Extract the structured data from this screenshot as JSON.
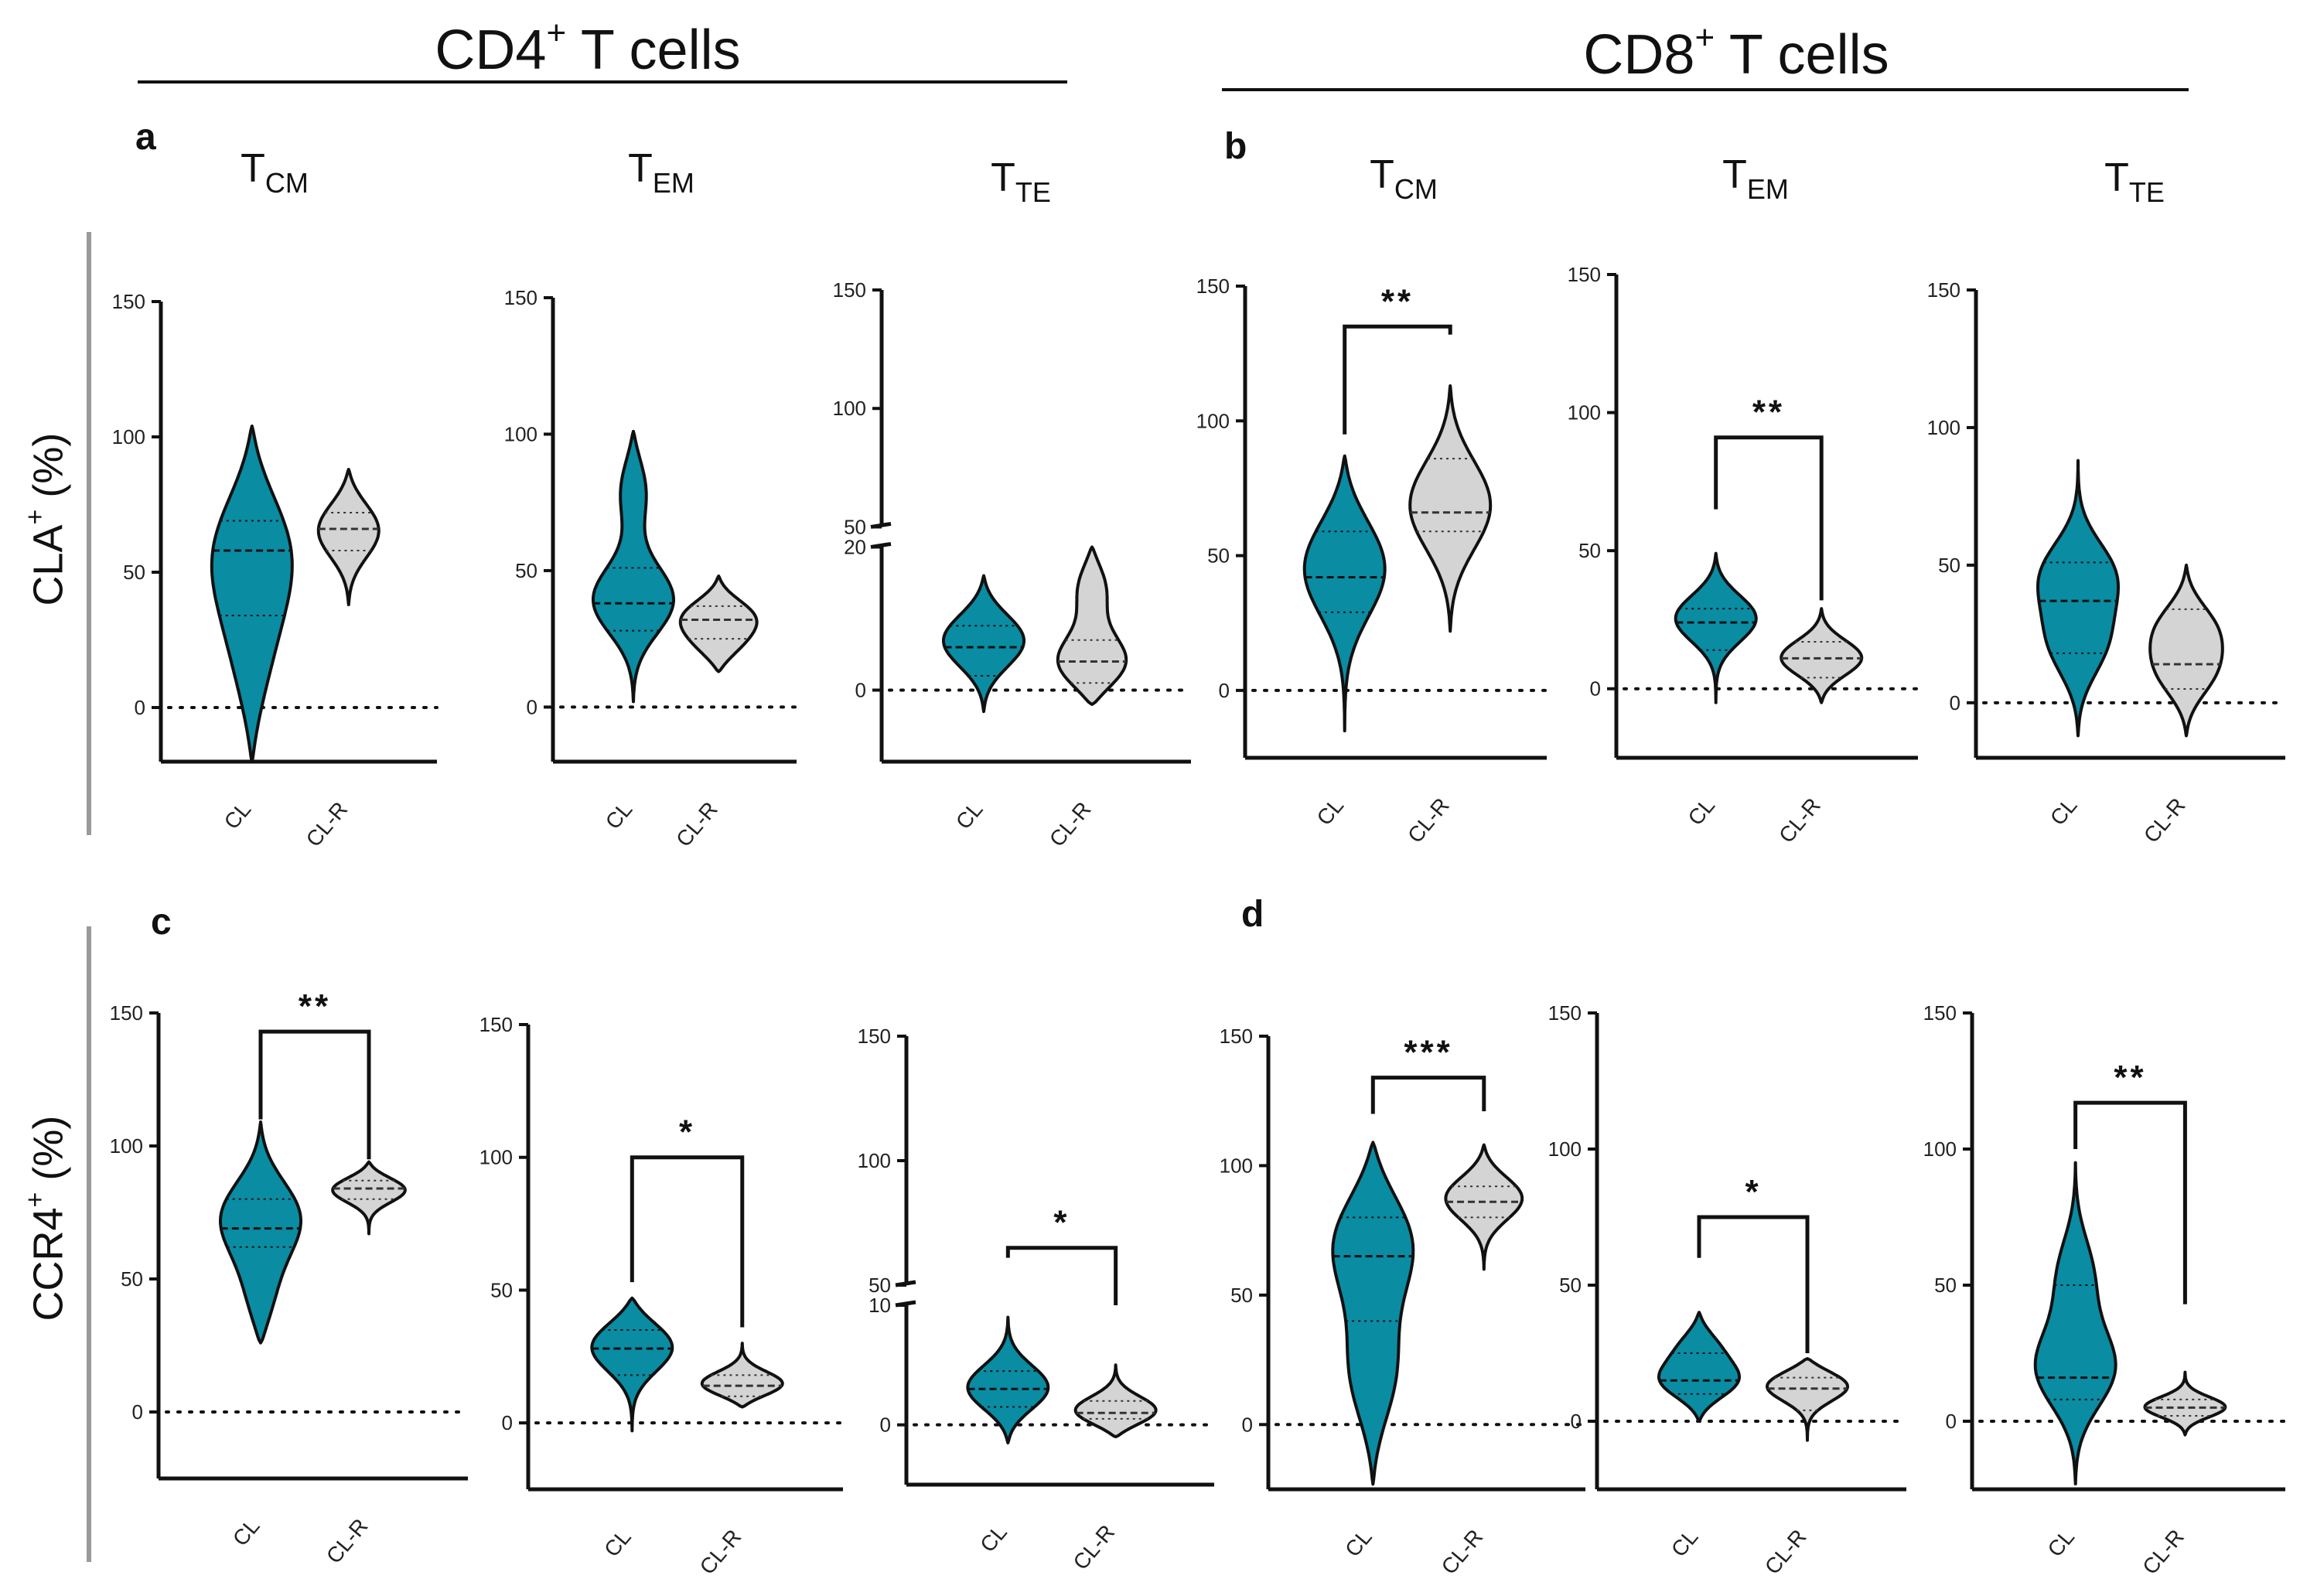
{
  "headers": {
    "cd4": {
      "main": "CD4",
      "sup": "+",
      "rest": " T cells"
    },
    "cd8": {
      "main": "CD8",
      "sup": "+",
      "rest": " T cells"
    }
  },
  "panel_labels": {
    "a": "a",
    "b": "b",
    "c": "c",
    "d": "d"
  },
  "row_labels": {
    "cla": {
      "main": "CLA",
      "sup": "+",
      "rest": " (%)"
    },
    "ccr4": {
      "main": "CCR4",
      "sup": "+",
      "rest": " (%)"
    }
  },
  "colors": {
    "cl": "#0a8ca3",
    "clr": "#d4d4d4",
    "axis": "#111111"
  },
  "chart_data": [
    {
      "id": "a1",
      "type": "violin",
      "panel": "a",
      "row": "CLA",
      "subset": "T",
      "subset_sub": "CM",
      "categories": [
        "CL",
        "CL-R"
      ],
      "ylim": [
        -20,
        150
      ],
      "yticks": [
        0,
        50,
        100,
        150
      ],
      "ytick_labels": [
        "0",
        "50",
        "100",
        "150"
      ],
      "series": [
        {
          "name": "CL",
          "min": -20,
          "max": 104,
          "q1": 34,
          "median": 58,
          "q3": 69,
          "modes": [
            [
              60,
              1.0
            ],
            [
              15,
              0.42
            ]
          ],
          "spread": 24
        },
        {
          "name": "CL-R",
          "min": 38,
          "max": 88,
          "q1": 58,
          "median": 66,
          "q3": 72,
          "modes": [
            [
              66,
              0.75
            ]
          ],
          "spread": 11
        }
      ],
      "significance": null
    },
    {
      "id": "a2",
      "type": "violin",
      "panel": "a",
      "row": "CLA",
      "subset": "T",
      "subset_sub": "EM",
      "categories": [
        "CL",
        "CL-R"
      ],
      "ylim": [
        -20,
        150
      ],
      "yticks": [
        0,
        50,
        100,
        150
      ],
      "ytick_labels": [
        "0",
        "50",
        "100",
        "150"
      ],
      "series": [
        {
          "name": "CL",
          "min": 2,
          "max": 101,
          "q1": 28,
          "median": 38,
          "q3": 51,
          "modes": [
            [
              38,
              1.0
            ],
            [
              82,
              0.4
            ]
          ],
          "spread": 13
        },
        {
          "name": "CL-R",
          "min": 13,
          "max": 48,
          "q1": 25,
          "median": 32,
          "q3": 37,
          "modes": [
            [
              34,
              0.95
            ],
            [
              22,
              0.6
            ]
          ],
          "spread": 7
        }
      ],
      "significance": null
    },
    {
      "id": "a3",
      "type": "violin",
      "panel": "a",
      "row": "CLA",
      "subset": "T",
      "subset_sub": "TE",
      "categories": [
        "CL",
        "CL-R"
      ],
      "ylim": [
        -10,
        150
      ],
      "broken": {
        "low_max": 20,
        "high_min": 50,
        "break_frac": 0.455
      },
      "yticks": [
        0,
        20,
        50,
        100,
        150
      ],
      "ytick_labels": [
        "0",
        "20",
        "50",
        "100",
        "150"
      ],
      "series": [
        {
          "name": "CL",
          "min": -3,
          "max": 16,
          "q1": 2,
          "median": 6,
          "q3": 9,
          "modes": [
            [
              7,
              1.0
            ]
          ],
          "spread": 4
        },
        {
          "name": "CL-R",
          "min": -2,
          "max": 20,
          "q1": 1,
          "median": 4,
          "q3": 7,
          "modes": [
            [
              3,
              0.85
            ],
            [
              15,
              0.35
            ]
          ],
          "spread": 4
        }
      ],
      "significance": null
    },
    {
      "id": "b1",
      "type": "violin",
      "panel": "b",
      "row": "CLA",
      "subset": "T",
      "subset_sub": "CM",
      "categories": [
        "CL",
        "CL-R"
      ],
      "ylim": [
        -25,
        150
      ],
      "yticks": [
        0,
        50,
        100,
        150
      ],
      "ytick_labels": [
        "0",
        "50",
        "100",
        "150"
      ],
      "series": [
        {
          "name": "CL",
          "min": -15,
          "max": 87,
          "q1": 29,
          "median": 42,
          "q3": 59,
          "modes": [
            [
              47,
              1.0
            ]
          ],
          "spread": 19
        },
        {
          "name": "CL-R",
          "min": 22,
          "max": 113,
          "q1": 59,
          "median": 66,
          "q3": 86,
          "modes": [
            [
              69,
              1.0
            ]
          ],
          "spread": 18
        }
      ],
      "significance": {
        "label": "**",
        "y": 135,
        "drop_left": 95,
        "drop_right": 132
      }
    },
    {
      "id": "b2",
      "type": "violin",
      "panel": "b",
      "row": "CLA",
      "subset": "T",
      "subset_sub": "EM",
      "categories": [
        "CL",
        "CL-R"
      ],
      "ylim": [
        -25,
        150
      ],
      "yticks": [
        0,
        50,
        100,
        150
      ],
      "ytick_labels": [
        "0",
        "50",
        "100",
        "150"
      ],
      "series": [
        {
          "name": "CL",
          "min": -5,
          "max": 49,
          "q1": 14,
          "median": 24,
          "q3": 29,
          "modes": [
            [
              26,
              1.0
            ]
          ],
          "spread": 9
        },
        {
          "name": "CL-R",
          "min": -5,
          "max": 29,
          "q1": 4,
          "median": 11,
          "q3": 17,
          "modes": [
            [
              11,
              1.0
            ]
          ],
          "spread": 7
        }
      ],
      "significance": {
        "label": "**",
        "y": 91,
        "drop_left": 65,
        "drop_right": 32
      }
    },
    {
      "id": "b3",
      "type": "violin",
      "panel": "b",
      "row": "CLA",
      "subset": "T",
      "subset_sub": "TE",
      "categories": [
        "CL",
        "CL-R"
      ],
      "ylim": [
        -20,
        150
      ],
      "yticks": [
        0,
        50,
        100,
        150
      ],
      "ytick_labels": [
        "0",
        "50",
        "100",
        "150"
      ],
      "series": [
        {
          "name": "CL",
          "min": -12,
          "max": 88,
          "q1": 18,
          "median": 37,
          "q3": 51,
          "modes": [
            [
              47,
              1.0
            ],
            [
              20,
              0.8
            ]
          ],
          "spread": 13
        },
        {
          "name": "CL-R",
          "min": -12,
          "max": 50,
          "q1": 5,
          "median": 14,
          "q3": 34,
          "modes": [
            [
              28,
              0.9
            ],
            [
              10,
              0.85
            ]
          ],
          "spread": 10
        }
      ],
      "significance": null
    },
    {
      "id": "c1",
      "type": "violin",
      "panel": "c",
      "row": "CCR4",
      "subset": "T",
      "subset_sub": "CM",
      "categories": [
        "CL",
        "CL-R"
      ],
      "ylim": [
        -25,
        150
      ],
      "yticks": [
        0,
        50,
        100,
        150
      ],
      "ytick_labels": [
        "0",
        "50",
        "100",
        "150"
      ],
      "series": [
        {
          "name": "CL",
          "min": 26,
          "max": 109,
          "q1": 62,
          "median": 69,
          "q3": 80,
          "modes": [
            [
              74,
              1.0
            ],
            [
              40,
              0.4
            ]
          ],
          "spread": 15
        },
        {
          "name": "CL-R",
          "min": 67,
          "max": 94,
          "q1": 80,
          "median": 84,
          "q3": 87,
          "modes": [
            [
              84,
              0.9
            ]
          ],
          "spread": 5
        }
      ],
      "significance": {
        "label": "**",
        "y": 143,
        "drop_left": 110,
        "drop_right": 95
      }
    },
    {
      "id": "c2",
      "type": "violin",
      "panel": "c",
      "row": "CCR4",
      "subset": "T",
      "subset_sub": "EM",
      "categories": [
        "CL",
        "CL-R"
      ],
      "ylim": [
        -25,
        150
      ],
      "yticks": [
        0,
        50,
        100,
        150
      ],
      "ytick_labels": [
        "0",
        "50",
        "100",
        "150"
      ],
      "series": [
        {
          "name": "CL",
          "min": -3,
          "max": 47,
          "q1": 18,
          "median": 28,
          "q3": 35,
          "modes": [
            [
              30,
              1.0
            ]
          ],
          "spread": 10
        },
        {
          "name": "CL-R",
          "min": 6,
          "max": 30,
          "q1": 10,
          "median": 14,
          "q3": 18,
          "modes": [
            [
              14,
              1.0
            ]
          ],
          "spread": 5
        }
      ],
      "significance": {
        "label": "*",
        "y": 100,
        "drop_left": 53,
        "drop_right": 36
      }
    },
    {
      "id": "c3",
      "type": "violin",
      "panel": "c",
      "row": "CCR4",
      "subset": "T",
      "subset_sub": "TE",
      "categories": [
        "CL",
        "CL-R"
      ],
      "ylim": [
        -5,
        150
      ],
      "broken": {
        "low_max": 10,
        "high_min": 50,
        "break_frac": 0.4
      },
      "yticks": [
        0,
        10,
        50,
        100,
        150
      ],
      "ytick_labels": [
        "0",
        "10",
        "50",
        "100",
        "150"
      ],
      "series": [
        {
          "name": "CL",
          "min": -1.5,
          "max": 9,
          "q1": 1.5,
          "median": 3,
          "q3": 4.5,
          "modes": [
            [
              3,
              1.0
            ]
          ],
          "spread": 2
        },
        {
          "name": "CL-R",
          "min": -1,
          "max": 5,
          "q1": 0.5,
          "median": 1,
          "q3": 2,
          "modes": [
            [
              1,
              1.0
            ]
          ],
          "spread": 1.3
        }
      ],
      "significance": {
        "label": "*",
        "y": 65,
        "drop_left": 61,
        "drop_right": 10
      }
    },
    {
      "id": "d1",
      "type": "violin",
      "panel": "d",
      "row": "CCR4",
      "subset": "T",
      "subset_sub": "CM",
      "categories": [
        "CL",
        "CL-R"
      ],
      "ylim": [
        -25,
        150
      ],
      "yticks": [
        0,
        50,
        100,
        150
      ],
      "ytick_labels": [
        "0",
        "50",
        "100",
        "150"
      ],
      "series": [
        {
          "name": "CL",
          "min": -23,
          "max": 109,
          "q1": 40,
          "median": 65,
          "q3": 80,
          "modes": [
            [
              73,
              1.0
            ],
            [
              18,
              0.55
            ]
          ],
          "spread": 21
        },
        {
          "name": "CL-R",
          "min": 60,
          "max": 108,
          "q1": 80,
          "median": 86,
          "q3": 92,
          "modes": [
            [
              88,
              0.95
            ]
          ],
          "spread": 9
        }
      ],
      "significance": {
        "label": "***",
        "y": 134,
        "drop_left": 120,
        "drop_right": 121
      }
    },
    {
      "id": "d2",
      "type": "violin",
      "panel": "d",
      "row": "CCR4",
      "subset": "T",
      "subset_sub": "EM",
      "categories": [
        "CL",
        "CL-R"
      ],
      "ylim": [
        -25,
        150
      ],
      "yticks": [
        0,
        50,
        100,
        150
      ],
      "ytick_labels": [
        "0",
        "50",
        "100",
        "150"
      ],
      "series": [
        {
          "name": "CL",
          "min": 0,
          "max": 40,
          "q1": 10,
          "median": 15,
          "q3": 25,
          "modes": [
            [
              14,
              1.0
            ],
            [
              28,
              0.5
            ]
          ],
          "spread": 7
        },
        {
          "name": "CL-R",
          "min": -7,
          "max": 23,
          "q1": 4,
          "median": 12,
          "q3": 16,
          "modes": [
            [
              14,
              1.0
            ]
          ],
          "spread": 6
        }
      ],
      "significance": {
        "label": "*",
        "y": 75,
        "drop_left": 60,
        "drop_right": 25
      }
    },
    {
      "id": "d3",
      "type": "violin",
      "panel": "d",
      "row": "CCR4",
      "subset": "T",
      "subset_sub": "TE",
      "categories": [
        "CL",
        "CL-R"
      ],
      "ylim": [
        -25,
        150
      ],
      "yticks": [
        0,
        50,
        100,
        150
      ],
      "ytick_labels": [
        "0",
        "50",
        "100",
        "150"
      ],
      "series": [
        {
          "name": "CL",
          "min": -23,
          "max": 95,
          "q1": 8,
          "median": 16,
          "q3": 50,
          "modes": [
            [
              18,
              1.0
            ],
            [
              55,
              0.45
            ]
          ],
          "spread": 15
        },
        {
          "name": "CL-R",
          "min": -5,
          "max": 18,
          "q1": 2,
          "median": 5,
          "q3": 8,
          "modes": [
            [
              5,
              1.0
            ]
          ],
          "spread": 4
        }
      ],
      "significance": {
        "label": "**",
        "y": 117,
        "drop_left": 100,
        "drop_right": 43
      }
    }
  ]
}
